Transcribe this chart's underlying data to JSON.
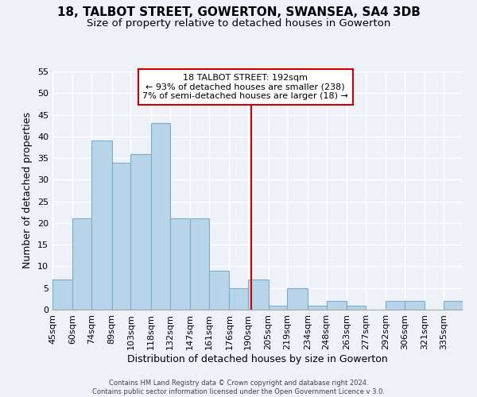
{
  "title": "18, TALBOT STREET, GOWERTON, SWANSEA, SA4 3DB",
  "subtitle": "Size of property relative to detached houses in Gowerton",
  "xlabel": "Distribution of detached houses by size in Gowerton",
  "ylabel": "Number of detached properties",
  "footer_line1": "Contains HM Land Registry data © Crown copyright and database right 2024.",
  "footer_line2": "Contains public sector information licensed under the Open Government Licence v 3.0.",
  "bin_labels": [
    "45sqm",
    "60sqm",
    "74sqm",
    "89sqm",
    "103sqm",
    "118sqm",
    "132sqm",
    "147sqm",
    "161sqm",
    "176sqm",
    "190sqm",
    "205sqm",
    "219sqm",
    "234sqm",
    "248sqm",
    "263sqm",
    "277sqm",
    "292sqm",
    "306sqm",
    "321sqm",
    "335sqm"
  ],
  "bin_edges": [
    45,
    60,
    74,
    89,
    103,
    118,
    132,
    147,
    161,
    176,
    190,
    205,
    219,
    234,
    248,
    263,
    277,
    292,
    306,
    321,
    335,
    349
  ],
  "counts": [
    7,
    21,
    39,
    34,
    36,
    43,
    21,
    21,
    9,
    5,
    7,
    1,
    5,
    1,
    2,
    1,
    0,
    2,
    2,
    0,
    2
  ],
  "bar_color": "#b8d4e8",
  "bar_edge_color": "#7aaec8",
  "vline_x": 192,
  "vline_color": "#cc0000",
  "annotation_title": "18 TALBOT STREET: 192sqm",
  "annotation_line1": "← 93% of detached houses are smaller (238)",
  "annotation_line2": "7% of semi-detached houses are larger (18) →",
  "ylim": [
    0,
    55
  ],
  "yticks": [
    0,
    5,
    10,
    15,
    20,
    25,
    30,
    35,
    40,
    45,
    50,
    55
  ],
  "background_color": "#eef2f8",
  "grid_color": "#ffffff",
  "title_fontsize": 11,
  "subtitle_fontsize": 9.5,
  "axis_label_fontsize": 9,
  "tick_fontsize": 8
}
